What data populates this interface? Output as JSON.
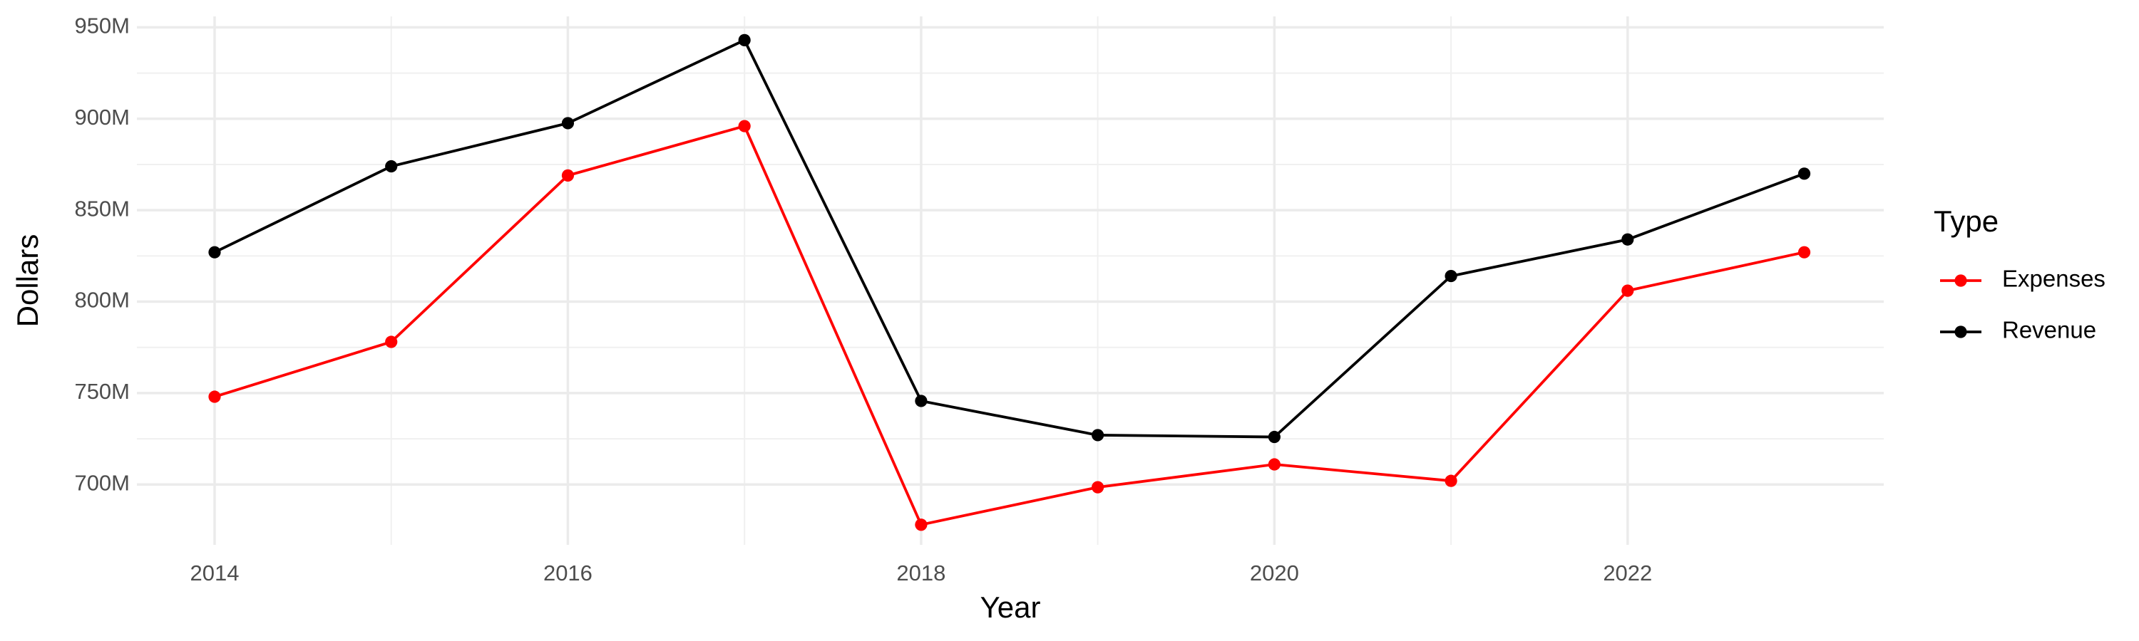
{
  "chart_data": {
    "type": "line",
    "x_label": "Year",
    "y_label": "Dollars",
    "legend_title": "Type",
    "x": [
      2014,
      2015,
      2016,
      2017,
      2018,
      2019,
      2020,
      2021,
      2022,
      2023
    ],
    "series": [
      {
        "name": "Expenses",
        "color": "#ff0000",
        "values": [
          748000000,
          778000000,
          869000000,
          896000000,
          678000000,
          698500000,
          711000000,
          702000000,
          806000000,
          827000000
        ]
      },
      {
        "name": "Revenue",
        "color": "#000000",
        "values": [
          827000000,
          874000000,
          897600000,
          943000000,
          745700000,
          727000000,
          726000000,
          814000000,
          834000000,
          870000000
        ]
      }
    ],
    "xlim": [
      2013.56,
      2023.45
    ],
    "xticks": [
      2014,
      2016,
      2018,
      2020,
      2022
    ],
    "ylim": [
      667000000,
      956000000
    ],
    "yticks": [
      {
        "value": 700000000,
        "label": "700M"
      },
      {
        "value": 750000000,
        "label": "750M"
      },
      {
        "value": 800000000,
        "label": "800M"
      },
      {
        "value": 850000000,
        "label": "850M"
      },
      {
        "value": 900000000,
        "label": "900M"
      },
      {
        "value": 950000000,
        "label": "950M"
      }
    ],
    "grid": true,
    "minor_grid": true,
    "legend": "right"
  }
}
